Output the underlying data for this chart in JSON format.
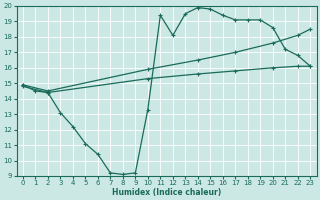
{
  "xlabel": "Humidex (Indice chaleur)",
  "xlim": [
    -0.5,
    23.5
  ],
  "ylim": [
    9,
    20
  ],
  "yticks": [
    9,
    10,
    11,
    12,
    13,
    14,
    15,
    16,
    17,
    18,
    19,
    20
  ],
  "xticks": [
    0,
    1,
    2,
    3,
    4,
    5,
    6,
    7,
    8,
    9,
    10,
    11,
    12,
    13,
    14,
    15,
    16,
    17,
    18,
    19,
    20,
    21,
    22,
    23
  ],
  "bg_color": "#cce8e4",
  "grid_color": "#b0d8d2",
  "line_color": "#1a6b5a",
  "line1_x": [
    0,
    1,
    2,
    3,
    4,
    5,
    6,
    7,
    8,
    9,
    10,
    11,
    12,
    13,
    14,
    15,
    16,
    17,
    18,
    19,
    20,
    21,
    22,
    23
  ],
  "line1_y": [
    14.9,
    14.5,
    14.4,
    13.1,
    12.2,
    11.1,
    10.4,
    9.2,
    9.1,
    9.2,
    13.3,
    19.4,
    18.1,
    19.5,
    19.9,
    19.8,
    19.4,
    19.1,
    19.1,
    19.1,
    18.6,
    17.2,
    16.8,
    16.1
  ],
  "line2_x": [
    0,
    2,
    10,
    14,
    17,
    20,
    22,
    23
  ],
  "line2_y": [
    14.9,
    14.5,
    15.9,
    16.5,
    17.0,
    17.6,
    18.1,
    18.5
  ],
  "line3_x": [
    0,
    2,
    10,
    14,
    17,
    20,
    22,
    23
  ],
  "line3_y": [
    14.8,
    14.4,
    15.3,
    15.6,
    15.8,
    16.0,
    16.1,
    16.1
  ]
}
